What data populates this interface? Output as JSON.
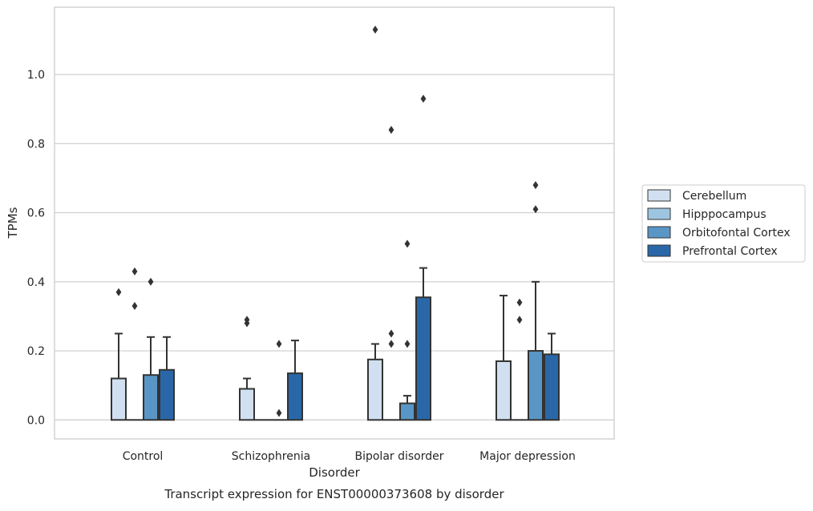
{
  "chart_data": {
    "type": "bar",
    "variant": "box-like bars with whiskers and outliers",
    "caption": "Transcript expression for ENST00000373608 by disorder",
    "xlabel": "Disorder",
    "ylabel": "TPMs",
    "ylim": [
      -0.055,
      1.195
    ],
    "yticks": [
      "0.0",
      "0.2",
      "0.4",
      "0.6",
      "0.8",
      "1.0"
    ],
    "ytick_values": [
      0.0,
      0.2,
      0.4,
      0.6,
      0.8,
      1.0
    ],
    "grid": true,
    "legend_position": "right",
    "categories": [
      "Control",
      "Schizophrenia",
      "Bipolar disorder",
      "Major depression"
    ],
    "series": [
      {
        "name": "Cerebellum",
        "color": "#d0e0f0",
        "values": [
          0.12,
          0.09,
          0.175,
          0.17
        ],
        "whisker_max": [
          0.25,
          0.12,
          0.22,
          0.36
        ],
        "outliers": [
          [
            0.37
          ],
          [
            0.28,
            0.29
          ],
          [
            1.13
          ],
          []
        ]
      },
      {
        "name": "Hipppocampus",
        "color": "#9dc5e0",
        "values": [
          0.0,
          0.0,
          0.0,
          0.0
        ],
        "whisker_max": [
          null,
          null,
          null,
          null
        ],
        "outliers": [
          [
            0.33,
            0.43
          ],
          [],
          [
            0.84,
            0.25,
            0.22
          ],
          [
            0.34,
            0.29
          ]
        ]
      },
      {
        "name": "Orbitofontal Cortex",
        "color": "#5996c6",
        "values": [
          0.13,
          0.0,
          0.048,
          0.2
        ],
        "whisker_max": [
          0.24,
          null,
          0.07,
          0.4
        ],
        "outliers": [
          [
            0.4
          ],
          [
            0.22,
            0.02
          ],
          [
            0.51,
            0.22
          ],
          [
            0.68,
            0.61
          ]
        ]
      },
      {
        "name": "Prefrontal Cortex",
        "color": "#2a67a8",
        "values": [
          0.145,
          0.135,
          0.355,
          0.19
        ],
        "whisker_max": [
          0.24,
          0.23,
          0.44,
          0.25
        ],
        "outliers": [
          [],
          [],
          [
            0.93
          ],
          []
        ]
      }
    ]
  }
}
